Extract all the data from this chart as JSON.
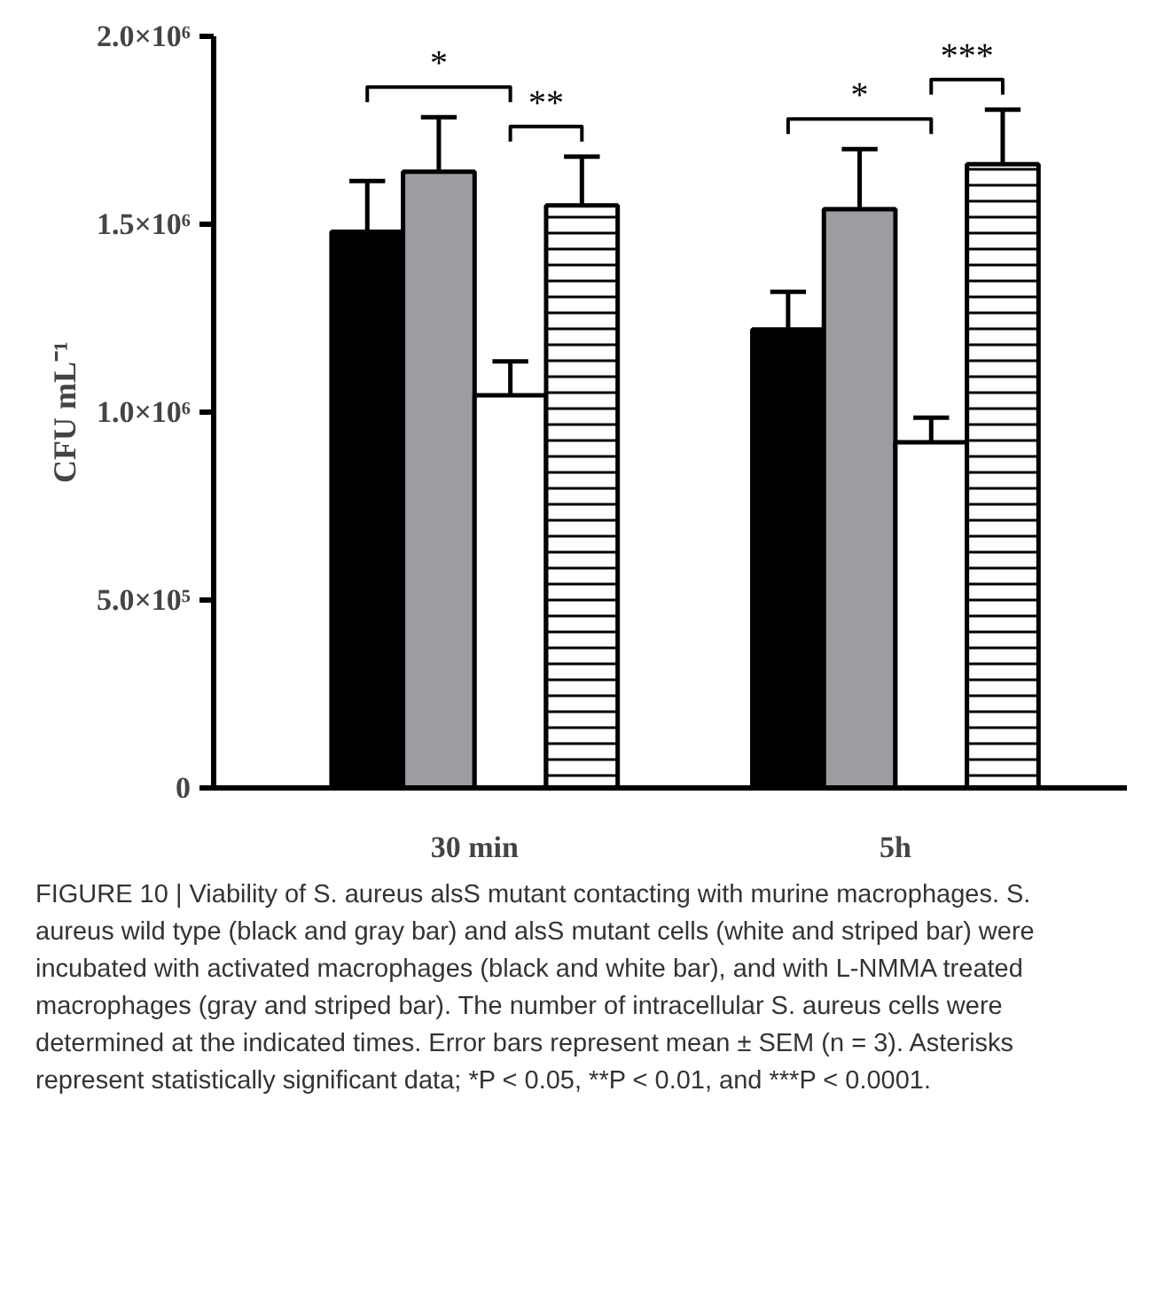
{
  "chart_data": {
    "type": "bar",
    "ylabel": "CFU mL⁻¹",
    "categories": [
      "30 min",
      "5h"
    ],
    "series": [
      {
        "color": "#000000",
        "values": [
          1480000,
          1220000
        ],
        "errors": [
          135000,
          100000
        ]
      },
      {
        "color": "#9d9ca1",
        "values": [
          1640000,
          1540000
        ],
        "errors": [
          145000,
          160000
        ]
      },
      {
        "color": "#ffffff",
        "values": [
          1045000,
          920000
        ],
        "errors": [
          90000,
          65000
        ]
      },
      {
        "color": "#ffffff",
        "values": [
          1550000,
          1660000
        ],
        "errors": [
          130000,
          145000
        ]
      }
    ],
    "ylim": [
      0,
      2000000
    ],
    "yticks": [
      {
        "value": 0,
        "label": "0"
      },
      {
        "value": 500000,
        "label": "5.0×10⁵"
      },
      {
        "value": 1000000,
        "label": "1.0×10⁶"
      },
      {
        "value": 1500000,
        "label": "1.5×10⁶"
      },
      {
        "value": 2000000,
        "label": "2.0×10⁶"
      }
    ],
    "grid": false,
    "annotations": [
      "*",
      "**",
      "*",
      "***",
      "FIGURE 10 | Viability of S. aureus alsS mutant contacting with murine macrophages. S. aureus wild type (black and gray bar) and alsS mutant cells (white and striped bar) were incubated with activated macrophages (black and white bar), and with L-NMMA treated macrophages (gray and striped bar). The number of intracellular S. aureus cells were determined at the indicated times. Error bars represent mean ± SEM (n = 3). Asterisks represent statistically significant data; *P < 0.05, **P < 0.01, and ***P < 0.0001."
    ]
  }
}
